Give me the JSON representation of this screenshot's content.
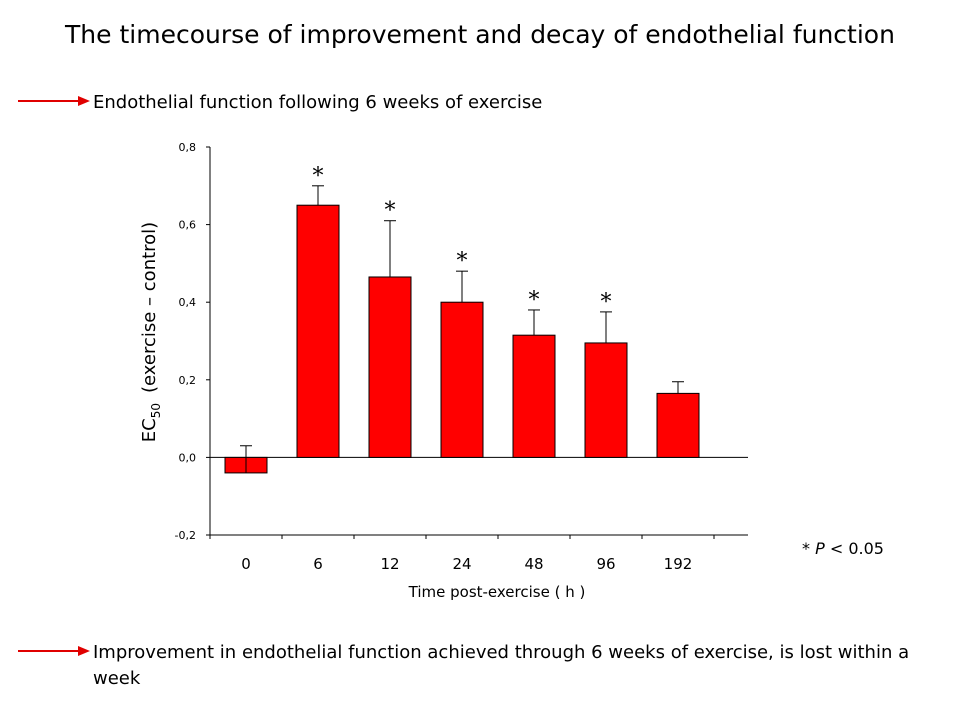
{
  "page": {
    "title": "The timecourse of improvement and decay of endothelial function",
    "callout_top": "Endothelial function following 6 weeks of exercise",
    "callout_bottom": "Improvement in endothelial function achieved through 6 weeks of exercise, is lost within a week",
    "significance_note": {
      "star": "*",
      "p": "P",
      "rest": " < 0.05"
    },
    "colors": {
      "bar": "#ff0000",
      "arrow": "#e00000"
    }
  },
  "chart_data": {
    "type": "bar",
    "title": "",
    "ylabel_main": "EC",
    "ylabel_sub": "50",
    "ylabel_rest": "(exercise – control)",
    "xlabel": "Time post-exercise ( h )",
    "categories": [
      "0",
      "6",
      "12",
      "24",
      "48",
      "96",
      "192"
    ],
    "values": [
      -0.04,
      0.65,
      0.465,
      0.4,
      0.315,
      0.295,
      0.165
    ],
    "error_upper": [
      0.03,
      0.7,
      0.61,
      0.48,
      0.38,
      0.375,
      0.195
    ],
    "significant": [
      false,
      true,
      true,
      true,
      true,
      true,
      false
    ],
    "significance_marker": "*",
    "ylim": [
      -0.2,
      0.8
    ],
    "yticks": [
      -0.2,
      0.0,
      0.2,
      0.4,
      0.6,
      0.8
    ],
    "ytick_labels": [
      "-0,2",
      "0,0",
      "0,2",
      "0,4",
      "0,6",
      "0,8"
    ],
    "grid": false,
    "legend": "none"
  }
}
